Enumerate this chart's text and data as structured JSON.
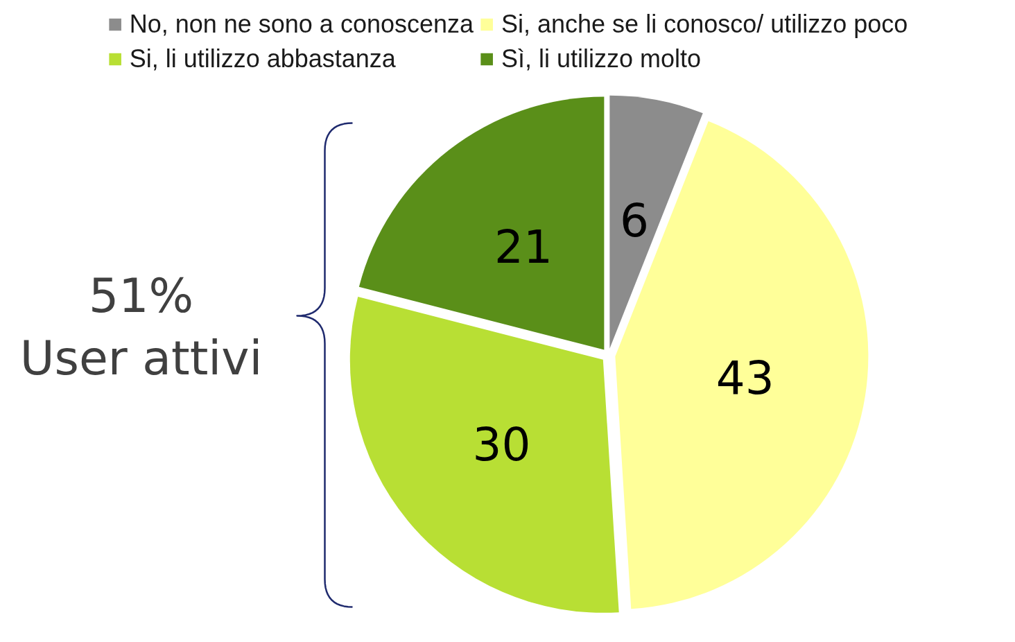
{
  "chart_data": {
    "type": "pie",
    "categories": [
      "No, non ne sono a conoscenza",
      "Si, anche se li conosco/ utilizzo poco",
      "Si, li utilizzo abbastanza",
      "Sì, li utilizzo molto"
    ],
    "values": [
      6,
      43,
      30,
      21
    ],
    "colors": [
      "#8c8c8c",
      "#ffff99",
      "#b8df34",
      "#5a8f19"
    ],
    "data_labels": true,
    "legend": "top",
    "annotations": [
      "51%\nUser attivi"
    ]
  }
}
